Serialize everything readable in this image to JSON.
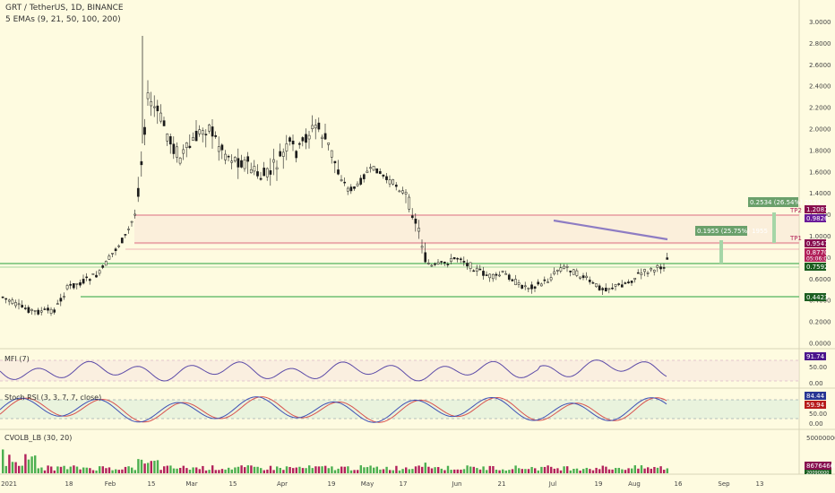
{
  "header": {
    "title": "GRT / TetherUS, 1D, BINANCE",
    "ema_label": "5 EMAs (9, 21, 50, 100, 200)"
  },
  "price_axis": [
    "3.0000",
    "2.8000",
    "2.6000",
    "2.4000",
    "2.2000",
    "2.0000",
    "1.8000",
    "1.6000",
    "1.4000",
    "1.2000",
    "1.0000",
    "0.8000",
    "0.6000",
    "0.4000",
    "0.2000",
    "0.0000"
  ],
  "time_axis": [
    "2021",
    "18",
    "Feb",
    "15",
    "Mar",
    "15",
    "Apr",
    "19",
    "May",
    "17",
    "Jun",
    "21",
    "Jul",
    "19",
    "Aug",
    "16",
    "Sep",
    "13"
  ],
  "levels": {
    "tp2_label": "TP2",
    "tp1_label": "TP1",
    "tp2_price": "1.2081",
    "tp2_sub": "0.9826",
    "tp1_price": "0.9547",
    "last_price": "0.8770",
    "countdown": "05:06:01",
    "support_1": "0.7592",
    "support_2": "0.4423"
  },
  "measures": {
    "upper": "0.2534 (26.54%) 2534",
    "lower": "0.1955 (25.75%) 1955"
  },
  "mfi": {
    "label": "MFI (7)",
    "value": "91.74",
    "axis": [
      "100.00",
      "50.00",
      "0.00"
    ]
  },
  "stoch": {
    "label": "Stoch RSI (3, 3, 7, 7, close)",
    "k": "84.44",
    "d": "59.94",
    "axis": [
      "100.00",
      "50.00",
      "0.00"
    ]
  },
  "volume": {
    "label": "CVOLB_LB (30, 20)",
    "axis": "500000000",
    "value1": "86764665",
    "value2": "20090000"
  },
  "colors": {
    "background": "#fefbe0",
    "candle": "#1b1b1b",
    "resistance": "#e79aa0",
    "support": "#6fbf73",
    "ema": "#8e7cc3",
    "up_volume": "#4caf50",
    "down_volume": "#b2225b"
  }
}
